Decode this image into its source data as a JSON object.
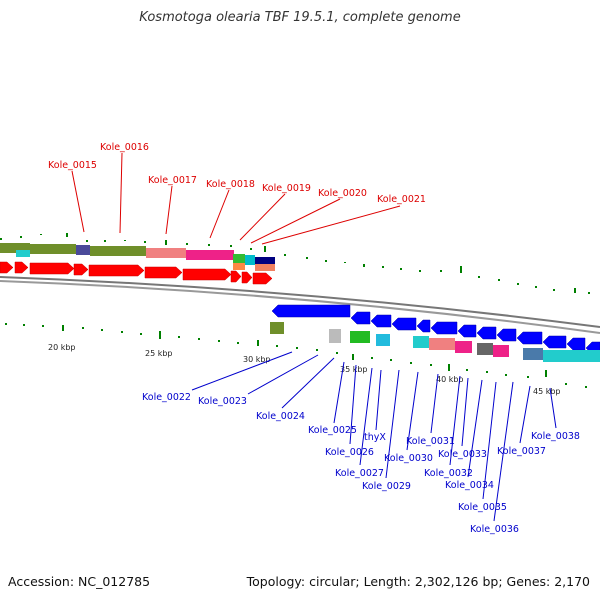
{
  "title": "Kosmotoga olearia TBF 19.5.1, complete genome",
  "footer": {
    "accession": "Accession: NC_012785",
    "info": "Topology: circular; Length: 2,302,126 bp; Genes: 2,170"
  },
  "colors": {
    "forward_label": "#dd0000",
    "reverse_label": "#0000cc",
    "forward_cds": "#ff0000",
    "reverse_cds": "#0000ff",
    "tick": "#008000",
    "backbone": "#888888"
  },
  "scale": [
    {
      "label": "20 kbp"
    },
    {
      "label": "25 kbp"
    },
    {
      "label": "30 kbp"
    },
    {
      "label": "35 kbp"
    },
    {
      "label": "40 kbp"
    },
    {
      "label": "45 kbp"
    }
  ],
  "forward_genes": [
    {
      "label": "Kole_0015"
    },
    {
      "label": "Kole_0016"
    },
    {
      "label": "Kole_0017"
    },
    {
      "label": "Kole_0018"
    },
    {
      "label": "Kole_0019"
    },
    {
      "label": "Kole_0020"
    },
    {
      "label": "Kole_0021"
    }
  ],
  "reverse_genes": [
    {
      "label": "Kole_0022"
    },
    {
      "label": "Kole_0023"
    },
    {
      "label": "Kole_0024"
    },
    {
      "label": "Kole_0025"
    },
    {
      "label": "Kole_0026"
    },
    {
      "label": "Kole_0027"
    },
    {
      "label": "thyX"
    },
    {
      "label": "Kole_0029"
    },
    {
      "label": "Kole_0030"
    },
    {
      "label": "Kole_0031"
    },
    {
      "label": "Kole_0032"
    },
    {
      "label": "Kole_0033"
    },
    {
      "label": "Kole_0034"
    },
    {
      "label": "Kole_0035"
    },
    {
      "label": "Kole_0036"
    },
    {
      "label": "Kole_0037"
    },
    {
      "label": "Kole_0038"
    }
  ]
}
